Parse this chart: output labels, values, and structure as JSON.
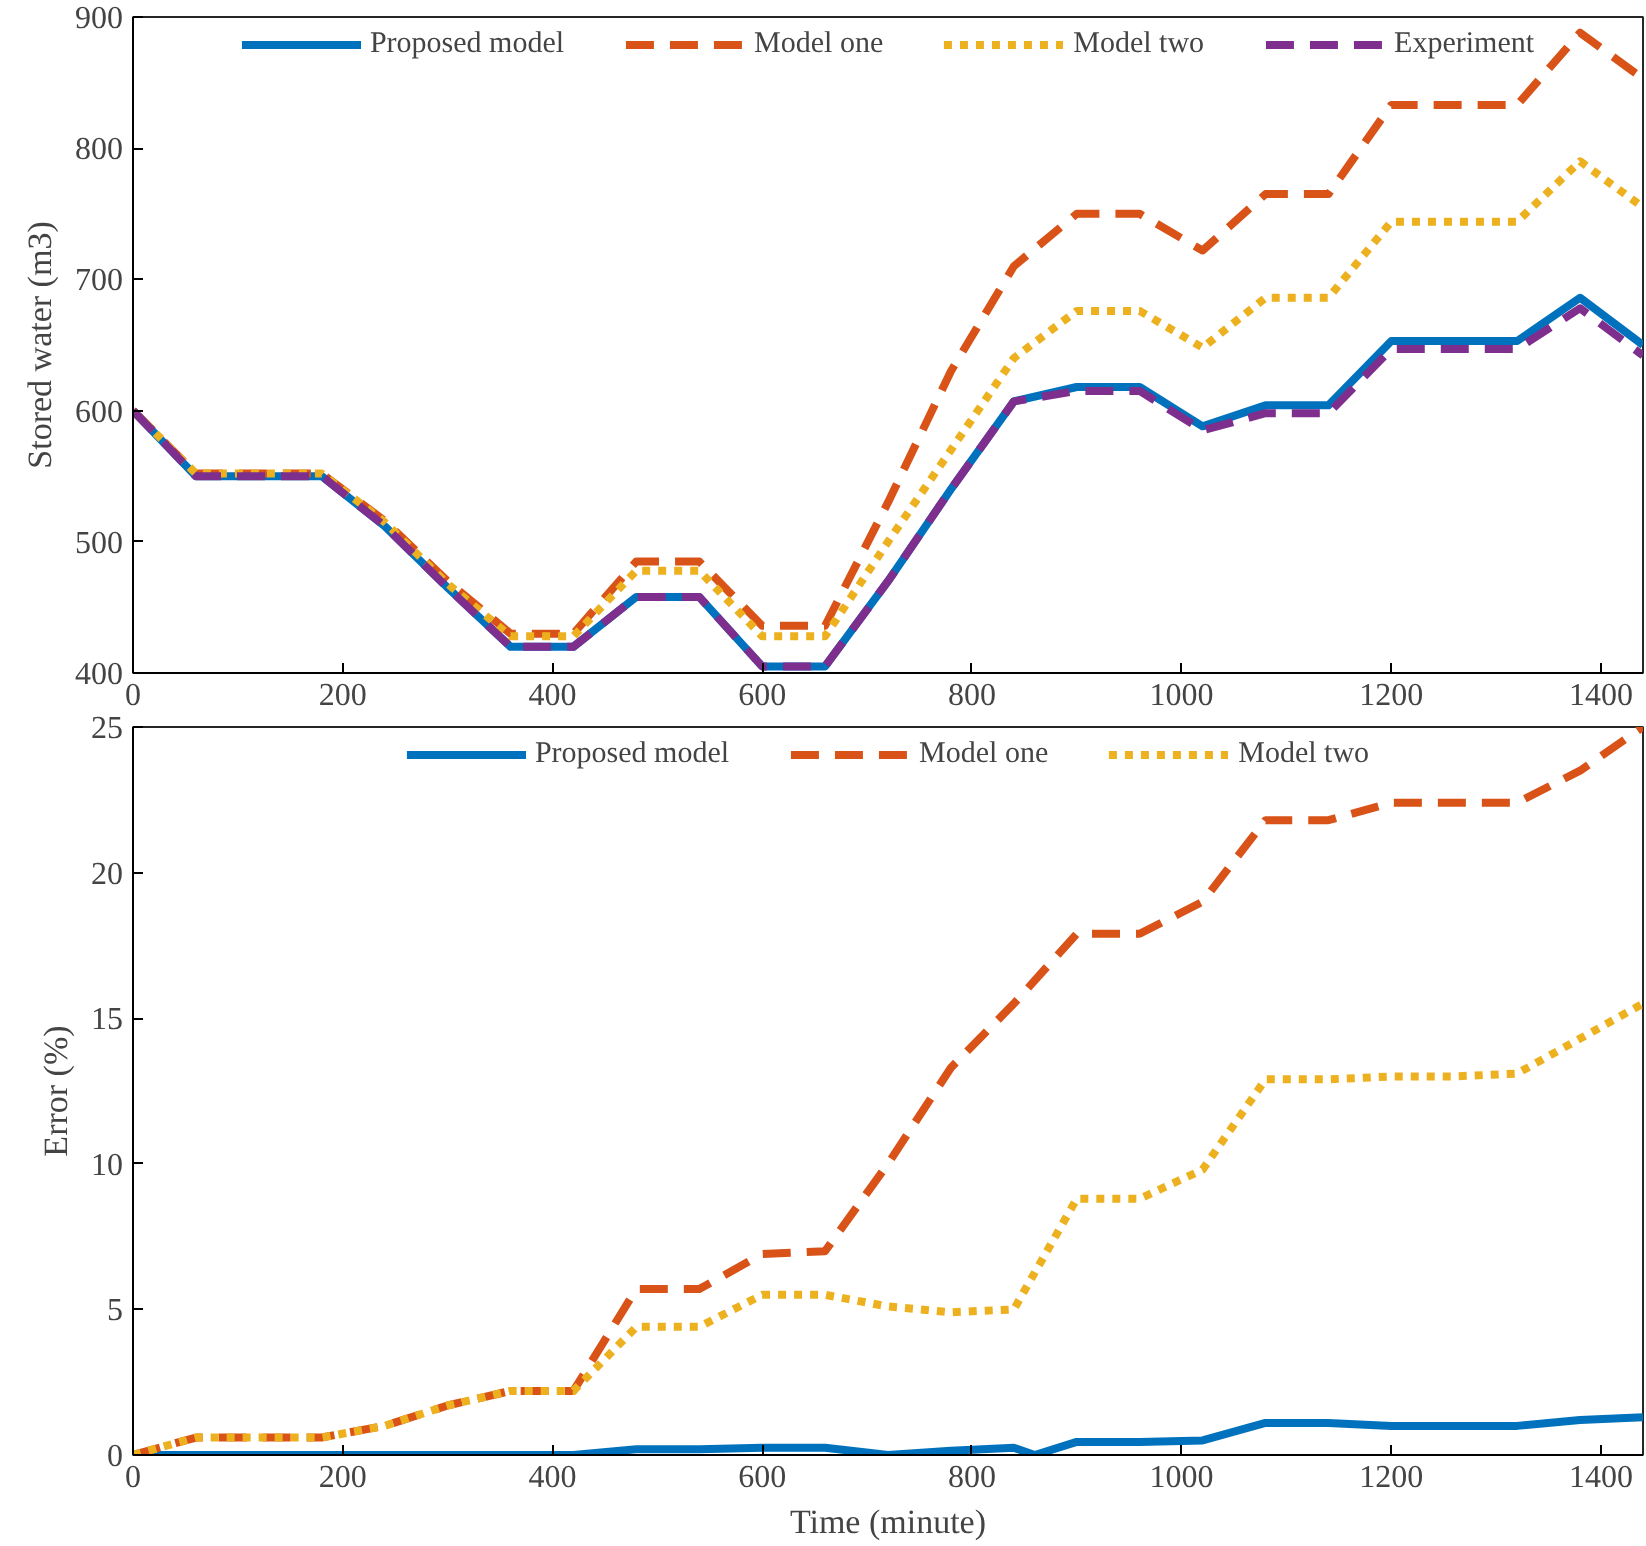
{
  "chart_data": [
    {
      "type": "line",
      "ylabel": "Stored water (m3)",
      "x": [
        0,
        60,
        120,
        180,
        240,
        300,
        360,
        420,
        480,
        540,
        600,
        660,
        720,
        780,
        840,
        900,
        960,
        1020,
        1080,
        1140,
        1200,
        1260,
        1320,
        1380,
        1440
      ],
      "xlim": [
        0,
        1440
      ],
      "xticks": [
        0,
        200,
        400,
        600,
        800,
        1000,
        1200,
        1400
      ],
      "ylim": [
        400,
        900
      ],
      "yticks": [
        400,
        500,
        600,
        700,
        800,
        900
      ],
      "grid": false,
      "legend": "top",
      "series": [
        {
          "name": "Proposed model",
          "color": "#0072bd",
          "line_style": "solid",
          "values": [
            600,
            550,
            550,
            550,
            512,
            465,
            420,
            420,
            458,
            458,
            405,
            405,
            470,
            540,
            607,
            618,
            618,
            588,
            604,
            604,
            653,
            653,
            653,
            686,
            650
          ]
        },
        {
          "name": "Model one",
          "color": "#d95319",
          "line_style": "dashed",
          "values": [
            600,
            552,
            552,
            552,
            516,
            470,
            430,
            430,
            485,
            485,
            436,
            436,
            530,
            630,
            710,
            750,
            750,
            722,
            765,
            765,
            833,
            833,
            833,
            888,
            853
          ]
        },
        {
          "name": "Model two",
          "color": "#edb120",
          "line_style": "dotted",
          "values": [
            600,
            552,
            552,
            552,
            515,
            468,
            428,
            428,
            478,
            478,
            428,
            428,
            500,
            570,
            640,
            676,
            676,
            648,
            686,
            686,
            744,
            744,
            744,
            790,
            755
          ]
        },
        {
          "name": "Experiment",
          "color": "#7e2f8e",
          "line_style": "dashed",
          "values": [
            600,
            550,
            550,
            550,
            512,
            465,
            420,
            420,
            458,
            458,
            405,
            405,
            470,
            540,
            607,
            615,
            615,
            585,
            598,
            598,
            647,
            647,
            647,
            678,
            642
          ]
        }
      ]
    },
    {
      "type": "line",
      "xlabel": "Time (minute)",
      "ylabel": "Error (%)",
      "x": [
        0,
        60,
        120,
        180,
        240,
        300,
        360,
        420,
        480,
        540,
        600,
        660,
        720,
        780,
        840,
        900,
        960,
        1020,
        1080,
        1140,
        1200,
        1260,
        1320,
        1380,
        1440
      ],
      "xlim": [
        0,
        1440
      ],
      "xticks": [
        0,
        200,
        400,
        600,
        800,
        1000,
        1200,
        1400
      ],
      "ylim": [
        0,
        25
      ],
      "yticks": [
        0,
        5,
        10,
        15,
        20,
        25
      ],
      "grid": false,
      "legend": "top",
      "series": [
        {
          "name": "Proposed model",
          "color": "#0072bd",
          "line_style": "solid",
          "x": [
            0,
            60,
            120,
            180,
            240,
            300,
            360,
            420,
            480,
            540,
            600,
            660,
            720,
            780,
            840,
            860,
            900,
            960,
            1020,
            1080,
            1140,
            1200,
            1260,
            1320,
            1380,
            1440
          ],
          "values": [
            0,
            0,
            0,
            0,
            0,
            0,
            0,
            0,
            0.2,
            0.2,
            0.25,
            0.25,
            0,
            0.15,
            0.25,
            0,
            0.45,
            0.45,
            0.5,
            1.1,
            1.1,
            1.0,
            1.0,
            1.0,
            1.2,
            1.3
          ]
        },
        {
          "name": "Model one",
          "color": "#d95319",
          "line_style": "dashed",
          "values": [
            0,
            0.6,
            0.6,
            0.6,
            1.0,
            1.7,
            2.2,
            2.2,
            5.7,
            5.7,
            6.9,
            7.0,
            10,
            13.3,
            15.5,
            17.9,
            17.9,
            19,
            21.8,
            21.8,
            22.4,
            22.4,
            22.4,
            23.5,
            25
          ]
        },
        {
          "name": "Model two",
          "color": "#edb120",
          "line_style": "dotted",
          "values": [
            0,
            0.6,
            0.6,
            0.6,
            1.0,
            1.7,
            2.2,
            2.2,
            4.4,
            4.4,
            5.5,
            5.5,
            5.1,
            4.9,
            5.0,
            8.8,
            8.8,
            9.8,
            12.9,
            12.9,
            13.0,
            13.0,
            13.1,
            14.3,
            15.5
          ]
        }
      ]
    }
  ]
}
